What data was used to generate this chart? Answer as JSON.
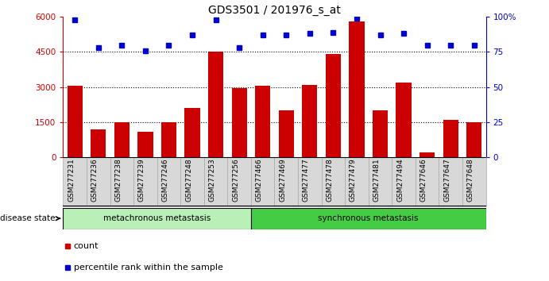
{
  "title": "GDS3501 / 201976_s_at",
  "categories": [
    "GSM277231",
    "GSM277236",
    "GSM277238",
    "GSM277239",
    "GSM277246",
    "GSM277248",
    "GSM277253",
    "GSM277256",
    "GSM277466",
    "GSM277469",
    "GSM277477",
    "GSM277478",
    "GSM277479",
    "GSM277481",
    "GSM277494",
    "GSM277646",
    "GSM277647",
    "GSM277648"
  ],
  "bar_values": [
    3050,
    1200,
    1500,
    1100,
    1500,
    2100,
    4500,
    2950,
    3050,
    2000,
    3100,
    4400,
    5800,
    2000,
    3200,
    200,
    1600,
    1500
  ],
  "percentile_values": [
    98,
    78,
    80,
    76,
    80,
    87,
    98,
    78,
    87,
    87,
    88,
    89,
    99,
    87,
    88,
    80,
    80,
    80
  ],
  "bar_color": "#cc0000",
  "dot_color": "#0000cc",
  "left_ylim": [
    0,
    6000
  ],
  "right_ylim": [
    0,
    100
  ],
  "left_yticks": [
    0,
    1500,
    3000,
    4500,
    6000
  ],
  "right_yticks": [
    0,
    25,
    50,
    75,
    100
  ],
  "n_meta": 8,
  "group1_label": "metachronous metastasis",
  "group2_label": "synchronous metastasis",
  "legend_count": "count",
  "legend_percentile": "percentile rank within the sample",
  "disease_state_label": "disease state",
  "title_fontsize": 10,
  "tick_fontsize": 7.5,
  "bar_width": 0.65,
  "meta_color": "#b8f0b8",
  "sync_color": "#44cc44",
  "xticklabel_bg": "#d8d8d8",
  "xticklabel_border": "#aaaaaa"
}
